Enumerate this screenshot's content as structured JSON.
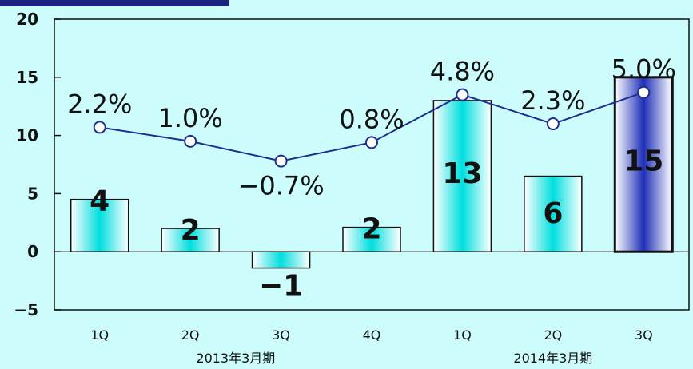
{
  "chart_data": {
    "type": "bar",
    "categories": [
      "1Q",
      "2Q",
      "3Q",
      "4Q",
      "1Q",
      "2Q",
      "3Q"
    ],
    "groups": [
      {
        "label": "2013年3月期",
        "start": 0,
        "end": 3
      },
      {
        "label": "2014年3月期",
        "start": 4,
        "end": 6
      }
    ],
    "yticks": [
      "20",
      "15",
      "10",
      "5",
      "0",
      "−5"
    ],
    "ylim": [
      -5,
      20
    ],
    "grid": false,
    "series": [
      {
        "type": "bar",
        "values": [
          4.5,
          2,
          -1.4,
          2.1,
          13,
          6.5,
          15
        ],
        "labels": [
          "4",
          "2",
          "−1",
          "2",
          "13",
          "6",
          "15"
        ],
        "highlight_index": 6
      },
      {
        "type": "line",
        "values": [
          10.7,
          9.5,
          7.8,
          9.4,
          13.5,
          11,
          13.7
        ],
        "labels": [
          "2.2%",
          "1.0%",
          "−0.7%",
          "0.8%",
          "4.8%",
          "2.3%",
          "5.0%"
        ]
      }
    ]
  },
  "colors": {
    "background": "#ccfcfc",
    "header_bar": "#1a237e",
    "bar_fill_start": "#ffffff",
    "bar_fill_end": "#00dede",
    "highlight_fill_start": "#ffffff",
    "highlight_fill_end": "#1f2fb8",
    "line": "#1e2f8f",
    "marker_fill": "#ffffff"
  }
}
